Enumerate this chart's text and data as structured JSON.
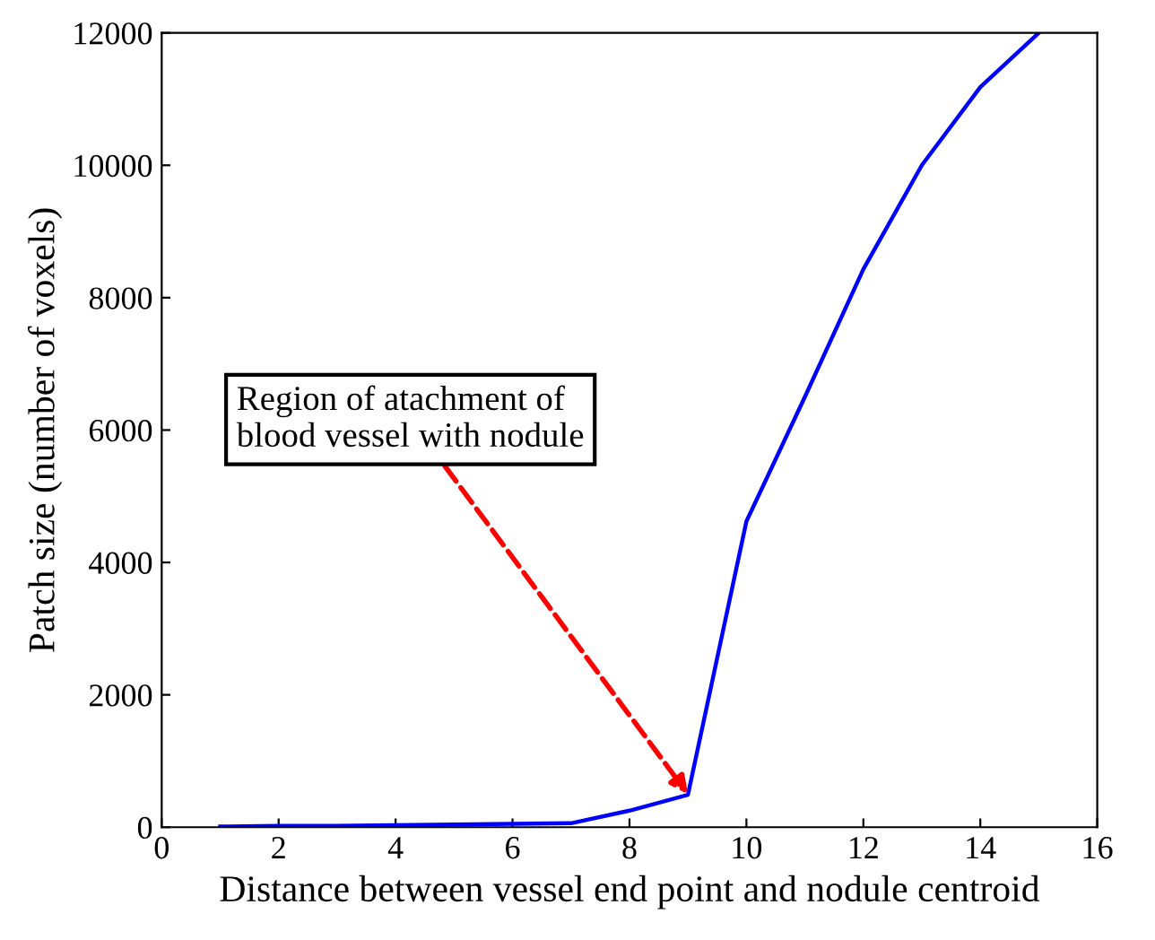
{
  "chart_data": {
    "type": "line",
    "xlabel": "Distance between vessel end point and nodule centroid",
    "ylabel": "Patch size (number of voxels)",
    "x": [
      1,
      2,
      3,
      4,
      5,
      6,
      7,
      8,
      9,
      10,
      11,
      12,
      13,
      14,
      15
    ],
    "series": [
      {
        "color": "#0000ff",
        "values": [
          10,
          20,
          20,
          30,
          40,
          50,
          60,
          250,
          490,
          4620,
          6500,
          8430,
          10000,
          11180,
          12000
        ]
      }
    ],
    "xlim": [
      0,
      16
    ],
    "xticks": [
      0,
      2,
      4,
      6,
      8,
      10,
      12,
      14,
      16
    ],
    "ylim": [
      0,
      12000
    ],
    "yticks": [
      0,
      2000,
      4000,
      6000,
      8000,
      10000,
      12000
    ],
    "grid": false,
    "legend": false,
    "marker": "none",
    "line_style": "solid",
    "annotations": [
      {
        "text": "Region of atachment of\nblood vessel with nodule",
        "x": 9,
        "y": 500
      }
    ]
  }
}
